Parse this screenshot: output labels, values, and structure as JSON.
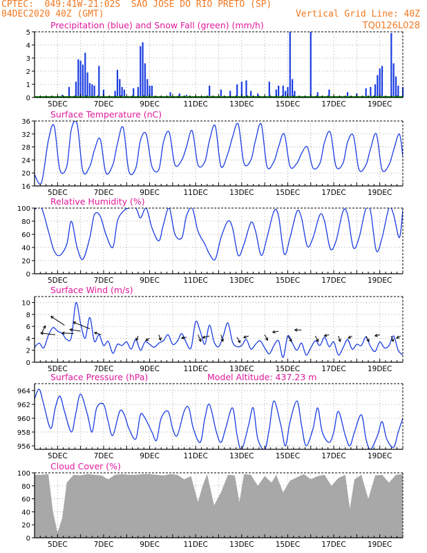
{
  "header": {
    "line1": "CPTEC:  049:41W-21:02S  SAO JOSE DO RIO PRETO (SP)",
    "line2_left": "04DEC2020 40Z (GMT)",
    "line2_right": "Vertical Grid Line: 40Z",
    "code": "TQ0126L028"
  },
  "colors": {
    "header": "#f07820",
    "title": "#e0189c",
    "series": "#1a3ce0",
    "snow": "#18a018",
    "cloud": "#a8a8a8",
    "arrows": "#000000",
    "grid": "#888888"
  },
  "x_ticks": [
    "5DEC",
    "7DEC",
    "9DEC",
    "11DEC",
    "13DEC",
    "15DEC",
    "17DEC",
    "19DEC"
  ],
  "chart_data": [
    {
      "type": "bar",
      "title": "Precipitation (blue) and Snow Fall (green) (mm/h)",
      "ylim": [
        0,
        5
      ],
      "yticks": [
        "0",
        "1",
        "2",
        "3",
        "4",
        "5"
      ],
      "series": [
        {
          "name": "Precipitation",
          "points": [
            [
              5.2,
              0.2
            ],
            [
              5.5,
              0.8
            ],
            [
              5.8,
              1.2
            ],
            [
              5.9,
              2.9
            ],
            [
              6.0,
              2.8
            ],
            [
              6.1,
              2.5
            ],
            [
              6.2,
              3.4
            ],
            [
              6.3,
              1.9
            ],
            [
              6.4,
              1.1
            ],
            [
              6.5,
              1.0
            ],
            [
              6.6,
              0.9
            ],
            [
              6.8,
              2.4
            ],
            [
              7.0,
              0.6
            ],
            [
              7.5,
              0.5
            ],
            [
              7.6,
              2.1
            ],
            [
              7.7,
              1.4
            ],
            [
              7.8,
              0.8
            ],
            [
              7.9,
              0.6
            ],
            [
              8.3,
              0.7
            ],
            [
              8.5,
              0.8
            ],
            [
              8.6,
              3.9
            ],
            [
              8.7,
              4.2
            ],
            [
              8.8,
              2.6
            ],
            [
              8.9,
              1.4
            ],
            [
              9.0,
              0.9
            ],
            [
              9.1,
              0.9
            ],
            [
              9.9,
              0.4
            ],
            [
              10.3,
              0.3
            ],
            [
              10.6,
              0.2
            ],
            [
              11.6,
              0.9
            ],
            [
              12.1,
              0.6
            ],
            [
              12.5,
              0.5
            ],
            [
              12.8,
              1.0
            ],
            [
              13.0,
              1.2
            ],
            [
              13.2,
              1.3
            ],
            [
              13.4,
              0.5
            ],
            [
              13.7,
              0.3
            ],
            [
              14.2,
              1.2
            ],
            [
              14.5,
              0.6
            ],
            [
              14.6,
              0.9
            ],
            [
              14.8,
              0.9
            ],
            [
              14.9,
              0.5
            ],
            [
              15.0,
              0.8
            ],
            [
              15.1,
              5.0
            ],
            [
              15.2,
              1.4
            ],
            [
              15.3,
              0.5
            ],
            [
              16.0,
              5.0
            ],
            [
              16.3,
              0.4
            ],
            [
              16.8,
              0.6
            ],
            [
              17.6,
              0.4
            ],
            [
              18.0,
              0.3
            ],
            [
              18.4,
              0.7
            ],
            [
              18.6,
              0.8
            ],
            [
              18.8,
              1.0
            ],
            [
              18.9,
              1.7
            ],
            [
              19.0,
              2.2
            ],
            [
              19.1,
              2.4
            ],
            [
              19.5,
              4.9
            ],
            [
              19.6,
              2.6
            ],
            [
              19.7,
              1.6
            ],
            [
              19.8,
              0.9
            ],
            [
              20.0,
              0.8
            ]
          ]
        },
        {
          "name": "Snow Fall",
          "points": []
        }
      ]
    },
    {
      "type": "line",
      "title": "Surface Temperature (nC)",
      "ylim": [
        16,
        36
      ],
      "yticks": [
        "16",
        "20",
        "24",
        "28",
        "32",
        "36"
      ],
      "x": [
        4.0,
        4.3,
        4.6,
        4.85,
        5.1,
        5.4,
        5.6,
        5.85,
        6.1,
        6.4,
        6.6,
        6.85,
        7.1,
        7.4,
        7.6,
        7.85,
        8.1,
        8.4,
        8.6,
        8.85,
        9.1,
        9.4,
        9.6,
        9.85,
        10.1,
        10.4,
        10.6,
        10.85,
        11.1,
        11.4,
        11.6,
        11.85,
        12.1,
        12.4,
        12.6,
        12.85,
        13.1,
        13.4,
        13.6,
        13.85,
        14.1,
        14.4,
        14.6,
        14.85,
        15.1,
        15.4,
        15.6,
        15.85,
        16.1,
        16.4,
        16.6,
        16.85,
        17.1,
        17.4,
        17.6,
        17.85,
        18.1,
        18.4,
        18.6,
        18.85,
        19.1,
        19.4,
        19.6,
        19.85,
        20.0
      ],
      "y": [
        19.5,
        17.0,
        30.0,
        34.5,
        21.0,
        22.0,
        33.5,
        35.0,
        20.5,
        22.0,
        27.0,
        30.5,
        20.0,
        22.5,
        29.0,
        34.0,
        20.5,
        21.5,
        30.0,
        32.0,
        22.0,
        21.0,
        29.5,
        32.5,
        22.5,
        24.0,
        28.0,
        33.0,
        22.5,
        23.5,
        30.0,
        34.5,
        22.0,
        26.0,
        31.0,
        35.0,
        23.0,
        24.0,
        30.0,
        35.0,
        22.0,
        23.5,
        28.0,
        32.0,
        22.0,
        23.0,
        26.0,
        28.0,
        21.5,
        23.0,
        29.5,
        32.5,
        22.0,
        23.0,
        29.5,
        31.5,
        21.0,
        22.5,
        27.5,
        32.0,
        21.0,
        22.5,
        27.0,
        32.0,
        25.0
      ]
    },
    {
      "type": "line",
      "title": "Relative Humidity (%)",
      "ylim": [
        0,
        100
      ],
      "yticks": [
        "0",
        "20",
        "40",
        "60",
        "80",
        "100"
      ],
      "x": [
        4.0,
        4.3,
        4.6,
        4.85,
        5.1,
        5.4,
        5.6,
        5.85,
        6.1,
        6.4,
        6.6,
        6.85,
        7.1,
        7.4,
        7.6,
        7.85,
        8.1,
        8.4,
        8.6,
        8.85,
        9.1,
        9.4,
        9.6,
        9.85,
        10.1,
        10.4,
        10.6,
        10.85,
        11.1,
        11.4,
        11.6,
        11.85,
        12.1,
        12.4,
        12.6,
        12.85,
        13.1,
        13.4,
        13.6,
        13.85,
        14.1,
        14.4,
        14.6,
        14.85,
        15.1,
        15.4,
        15.6,
        15.85,
        16.1,
        16.4,
        16.6,
        16.85,
        17.1,
        17.4,
        17.6,
        17.85,
        18.1,
        18.4,
        18.6,
        18.85,
        19.1,
        19.4,
        19.6,
        19.85,
        20.0
      ],
      "y": [
        98,
        100,
        65,
        35,
        28,
        45,
        80,
        40,
        22,
        55,
        90,
        88,
        60,
        40,
        80,
        95,
        100,
        100,
        85,
        100,
        70,
        50,
        75,
        100,
        60,
        55,
        88,
        100,
        65,
        45,
        30,
        22,
        55,
        80,
        70,
        28,
        45,
        78,
        65,
        28,
        55,
        95,
        88,
        30,
        55,
        95,
        85,
        42,
        55,
        90,
        80,
        38,
        50,
        95,
        90,
        40,
        55,
        100,
        95,
        35,
        55,
        100,
        90,
        55,
        98
      ]
    },
    {
      "type": "line",
      "title": "Surface Wind (m/s)",
      "ylim": [
        0,
        11
      ],
      "yticks": [
        "0",
        "2",
        "4",
        "6",
        "8",
        "10"
      ],
      "x": [
        4.0,
        4.2,
        4.4,
        4.6,
        4.8,
        5.0,
        5.2,
        5.4,
        5.6,
        5.8,
        6.0,
        6.2,
        6.4,
        6.6,
        6.8,
        7.0,
        7.2,
        7.4,
        7.6,
        7.8,
        8.0,
        8.2,
        8.4,
        8.6,
        8.8,
        9.0,
        9.2,
        9.4,
        9.6,
        9.8,
        10.0,
        10.2,
        10.4,
        10.6,
        10.8,
        11.0,
        11.2,
        11.4,
        11.6,
        11.8,
        12.0,
        12.2,
        12.4,
        12.6,
        12.8,
        13.0,
        13.2,
        13.4,
        13.6,
        13.8,
        14.0,
        14.2,
        14.4,
        14.6,
        14.8,
        15.0,
        15.2,
        15.4,
        15.6,
        15.8,
        16.0,
        16.2,
        16.4,
        16.6,
        16.8,
        17.0,
        17.2,
        17.4,
        17.6,
        17.8,
        18.0,
        18.2,
        18.4,
        18.6,
        18.8,
        19.0,
        19.2,
        19.4,
        19.6,
        19.8,
        20.0
      ],
      "y": [
        2.5,
        3.2,
        2.4,
        4.5,
        5.8,
        5.2,
        4.8,
        3.8,
        4.2,
        10.0,
        6.5,
        4.0,
        7.5,
        3.5,
        4.6,
        2.8,
        3.5,
        1.5,
        3.0,
        2.8,
        3.4,
        2.2,
        3.8,
        2.0,
        3.4,
        3.0,
        2.5,
        3.2,
        3.6,
        4.6,
        3.0,
        3.5,
        4.8,
        3.2,
        2.4,
        6.8,
        5.2,
        3.0,
        6.2,
        3.4,
        2.6,
        4.4,
        6.6,
        3.4,
        2.6,
        2.8,
        3.8,
        2.2,
        3.0,
        3.6,
        2.4,
        1.4,
        2.8,
        3.6,
        0.8,
        4.4,
        3.2,
        2.0,
        3.2,
        1.2,
        2.4,
        3.6,
        2.8,
        4.2,
        2.6,
        3.4,
        1.2,
        2.4,
        3.8,
        2.2,
        3.0,
        2.8,
        4.2,
        2.6,
        1.8,
        3.4,
        2.4,
        2.8,
        4.4,
        2.0,
        1.2
      ],
      "arrows": [
        [
          4.3,
          4.8,
          0.4,
          1.4
        ],
        [
          4.9,
          4.6,
          -1.5,
          0.3
        ],
        [
          5.3,
          6.2,
          -1.4,
          1.6
        ],
        [
          5.7,
          4.8,
          -1.2,
          0.1
        ],
        [
          6.0,
          5.2,
          -1.1,
          0.3
        ],
        [
          6.4,
          5.6,
          -1.7,
          1.2
        ],
        [
          6.9,
          4.6,
          -0.7,
          0.4
        ],
        [
          8.5,
          4.4,
          -0.2,
          -0.8
        ],
        [
          9.0,
          4.0,
          -0.4,
          -0.4
        ],
        [
          9.4,
          4.6,
          0.2,
          -1.0
        ],
        [
          10.6,
          4.2,
          -0.5,
          -0.2
        ],
        [
          11.1,
          4.6,
          0.3,
          -1.2
        ],
        [
          11.6,
          4.4,
          -0.7,
          -0.3
        ],
        [
          12.1,
          4.6,
          0.2,
          -1.2
        ],
        [
          12.8,
          4.2,
          0.3,
          -1.0
        ],
        [
          13.3,
          4.4,
          -0.5,
          -0.3
        ],
        [
          14.0,
          4.6,
          0.3,
          -1.0
        ],
        [
          14.6,
          5.2,
          -0.6,
          -0.2
        ],
        [
          15.0,
          4.4,
          0.4,
          -1.0
        ],
        [
          15.6,
          5.4,
          -0.7,
          0.0
        ],
        [
          16.2,
          4.4,
          0.3,
          -1.0
        ],
        [
          16.8,
          4.6,
          -0.5,
          -0.2
        ],
        [
          17.2,
          4.4,
          0.2,
          -1.0
        ],
        [
          17.8,
          4.4,
          -0.4,
          -0.4
        ],
        [
          18.4,
          4.4,
          0.3,
          -1.0
        ],
        [
          19.0,
          4.6,
          -0.5,
          -0.2
        ],
        [
          19.5,
          4.4,
          0.2,
          -1.0
        ],
        [
          19.9,
          4.4,
          -0.4,
          -0.4
        ]
      ]
    },
    {
      "type": "line",
      "title": "Surface Pressure (hPa)",
      "subtitle": "Model Altitude: 437.23 m",
      "ylim": [
        955.5,
        965.0
      ],
      "yticks": [
        "956",
        "958",
        "960",
        "962",
        "964"
      ],
      "x": [
        4.0,
        4.2,
        4.4,
        4.7,
        4.9,
        5.1,
        5.3,
        5.6,
        5.8,
        6.0,
        6.3,
        6.5,
        6.7,
        7.0,
        7.2,
        7.4,
        7.7,
        7.9,
        8.1,
        8.4,
        8.6,
        8.8,
        9.1,
        9.3,
        9.5,
        9.8,
        10.0,
        10.2,
        10.5,
        10.7,
        10.9,
        11.2,
        11.4,
        11.6,
        11.9,
        12.1,
        12.3,
        12.6,
        12.8,
        13.0,
        13.3,
        13.5,
        13.7,
        14.0,
        14.2,
        14.4,
        14.7,
        14.9,
        15.1,
        15.4,
        15.6,
        15.8,
        16.1,
        16.3,
        16.5,
        16.8,
        17.0,
        17.2,
        17.5,
        17.7,
        17.9,
        18.2,
        18.4,
        18.6,
        18.9,
        19.1,
        19.3,
        19.6,
        19.8,
        20.0
      ],
      "y": [
        962.8,
        964.2,
        962.0,
        958.5,
        961.5,
        963.2,
        961.0,
        958.0,
        960.8,
        963.5,
        960.5,
        958.0,
        961.5,
        962.0,
        959.5,
        957.5,
        961.0,
        960.5,
        958.5,
        957.0,
        960.5,
        960.0,
        958.0,
        956.8,
        960.0,
        961.0,
        958.5,
        957.5,
        961.0,
        961.5,
        958.5,
        956.5,
        960.0,
        962.0,
        958.0,
        956.5,
        958.5,
        961.5,
        957.5,
        955.5,
        959.0,
        961.5,
        957.0,
        955.5,
        958.5,
        962.5,
        959.0,
        956.0,
        959.5,
        962.5,
        959.0,
        956.0,
        958.5,
        961.5,
        958.0,
        956.5,
        958.0,
        961.0,
        957.5,
        956.0,
        958.0,
        960.5,
        957.0,
        955.5,
        957.5,
        959.5,
        957.0,
        955.8,
        958.0,
        960.0
      ]
    },
    {
      "type": "bar",
      "title": "Cloud Cover (%)",
      "ylim": [
        0,
        100
      ],
      "yticks": [
        "0",
        "20",
        "40",
        "60",
        "80",
        "100"
      ],
      "x": [
        4.0,
        4.3,
        4.6,
        4.8,
        5.0,
        5.2,
        5.4,
        5.7,
        6.0,
        6.3,
        6.6,
        6.9,
        7.2,
        7.5,
        7.8,
        8.1,
        8.4,
        8.7,
        9.0,
        9.3,
        9.6,
        9.9,
        10.2,
        10.5,
        10.8,
        11.1,
        11.3,
        11.5,
        11.8,
        12.1,
        12.4,
        12.7,
        12.9,
        13.1,
        13.4,
        13.7,
        14.0,
        14.3,
        14.5,
        14.8,
        15.1,
        15.4,
        15.7,
        16.0,
        16.3,
        16.6,
        16.9,
        17.2,
        17.5,
        17.7,
        17.9,
        18.2,
        18.5,
        18.8,
        19.1,
        19.4,
        19.7,
        20.0
      ],
      "values": [
        97,
        97,
        98,
        40,
        8,
        30,
        85,
        97,
        96,
        98,
        97,
        96,
        90,
        97,
        98,
        97,
        97,
        98,
        98,
        97,
        96,
        98,
        97,
        90,
        95,
        55,
        80,
        98,
        50,
        70,
        97,
        96,
        55,
        98,
        97,
        80,
        95,
        85,
        97,
        70,
        88,
        93,
        98,
        90,
        95,
        97,
        80,
        92,
        97,
        45,
        90,
        97,
        60,
        96,
        97,
        85,
        97,
        98
      ]
    }
  ]
}
